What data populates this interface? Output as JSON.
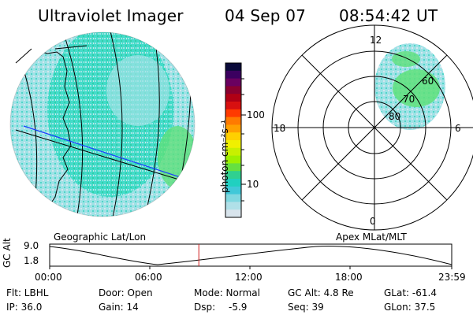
{
  "header": {
    "title": "Ultraviolet Imager",
    "date": "04 Sep 07",
    "time": "08:54:42 UT"
  },
  "left_panel": {
    "caption": "Geographic Lat/Lon"
  },
  "right_panel": {
    "caption": "Apex MLat/MLT",
    "mlt_labels": [
      "12",
      "18",
      "6",
      "0"
    ],
    "mlat_labels": [
      "60",
      "70",
      "80"
    ]
  },
  "colorbar": {
    "unit_label": "photon cm⁻²s⁻¹",
    "tick_labels": [
      "100",
      "10"
    ],
    "colors": [
      "#0a0a3a",
      "#3b0060",
      "#6a0060",
      "#8a0030",
      "#b00015",
      "#d81010",
      "#ff3a00",
      "#ff7a00",
      "#ffa000",
      "#ffd000",
      "#f0f000",
      "#c8f000",
      "#9ef000",
      "#66e040",
      "#30d090",
      "#20d0c0",
      "#40c8d8",
      "#80d8e0",
      "#b0e0e8",
      "#d8e4ec"
    ]
  },
  "altitude_plot": {
    "ylabel": "GC Alt",
    "yticks": [
      "9.0",
      "1.8"
    ],
    "xticks": [
      "00:00",
      "06:00",
      "12:00",
      "18:00",
      "23:59"
    ],
    "current_time_fraction": 0.371
  },
  "status": {
    "row1": [
      "Flt: LBHL",
      "Door: Open",
      "Mode: Normal",
      "GC Alt: 4.8 Re",
      "GLat: -61.4"
    ],
    "row2": [
      "IP: 36.0",
      "Gain: 14",
      "Dsp:",
      "-5.9",
      "Seq: 39",
      "GLon: 37.5"
    ]
  }
}
